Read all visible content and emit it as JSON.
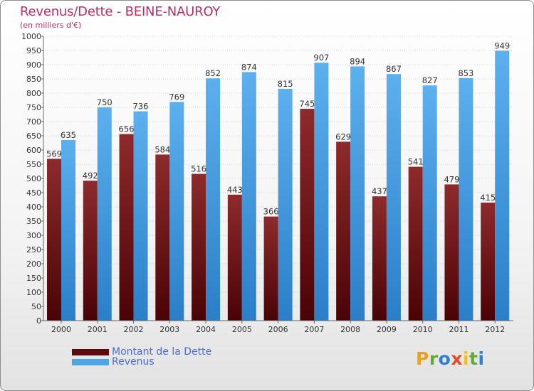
{
  "title": "Revenus/Dette - BEINE-NAUROY",
  "subtitle": "(en milliers d'€)",
  "colors": {
    "dette": "#7a1518",
    "revenus": "#4fa5e4",
    "title": "#b3306a",
    "legend_text": "#4a6bd8"
  },
  "legend": {
    "items": [
      {
        "label": "Montant de la Dette",
        "color": "#5a0a0c"
      },
      {
        "label": "Revenus",
        "color": "#4fa5e4"
      }
    ]
  },
  "logo": {
    "text": "Proxiti",
    "letter_colors": [
      "#e8a020",
      "#5fae3a",
      "#2f7fd4",
      "#e84a2a",
      "#f0c020",
      "#5fae3a",
      "#2f7fd4"
    ]
  },
  "chart_data": {
    "type": "bar",
    "title": "Revenus/Dette - BEINE-NAUROY",
    "ylabel": "(en milliers d'€)",
    "categories": [
      "2000",
      "2001",
      "2002",
      "2003",
      "2004",
      "2005",
      "2006",
      "2007",
      "2008",
      "2009",
      "2010",
      "2011",
      "2012"
    ],
    "series": [
      {
        "name": "Montant de la Dette",
        "values": [
          569,
          492,
          656,
          584,
          516,
          443,
          366,
          745,
          629,
          437,
          541,
          479,
          415
        ]
      },
      {
        "name": "Revenus",
        "values": [
          635,
          750,
          736,
          769,
          852,
          874,
          815,
          907,
          894,
          867,
          827,
          853,
          949
        ]
      }
    ],
    "ylim": [
      0,
      1000
    ],
    "yticks": [
      0,
      50,
      100,
      150,
      200,
      250,
      300,
      350,
      400,
      450,
      500,
      550,
      600,
      650,
      700,
      750,
      800,
      850,
      900,
      950,
      1000
    ],
    "grid": true,
    "legend_position": "bottom-left"
  }
}
